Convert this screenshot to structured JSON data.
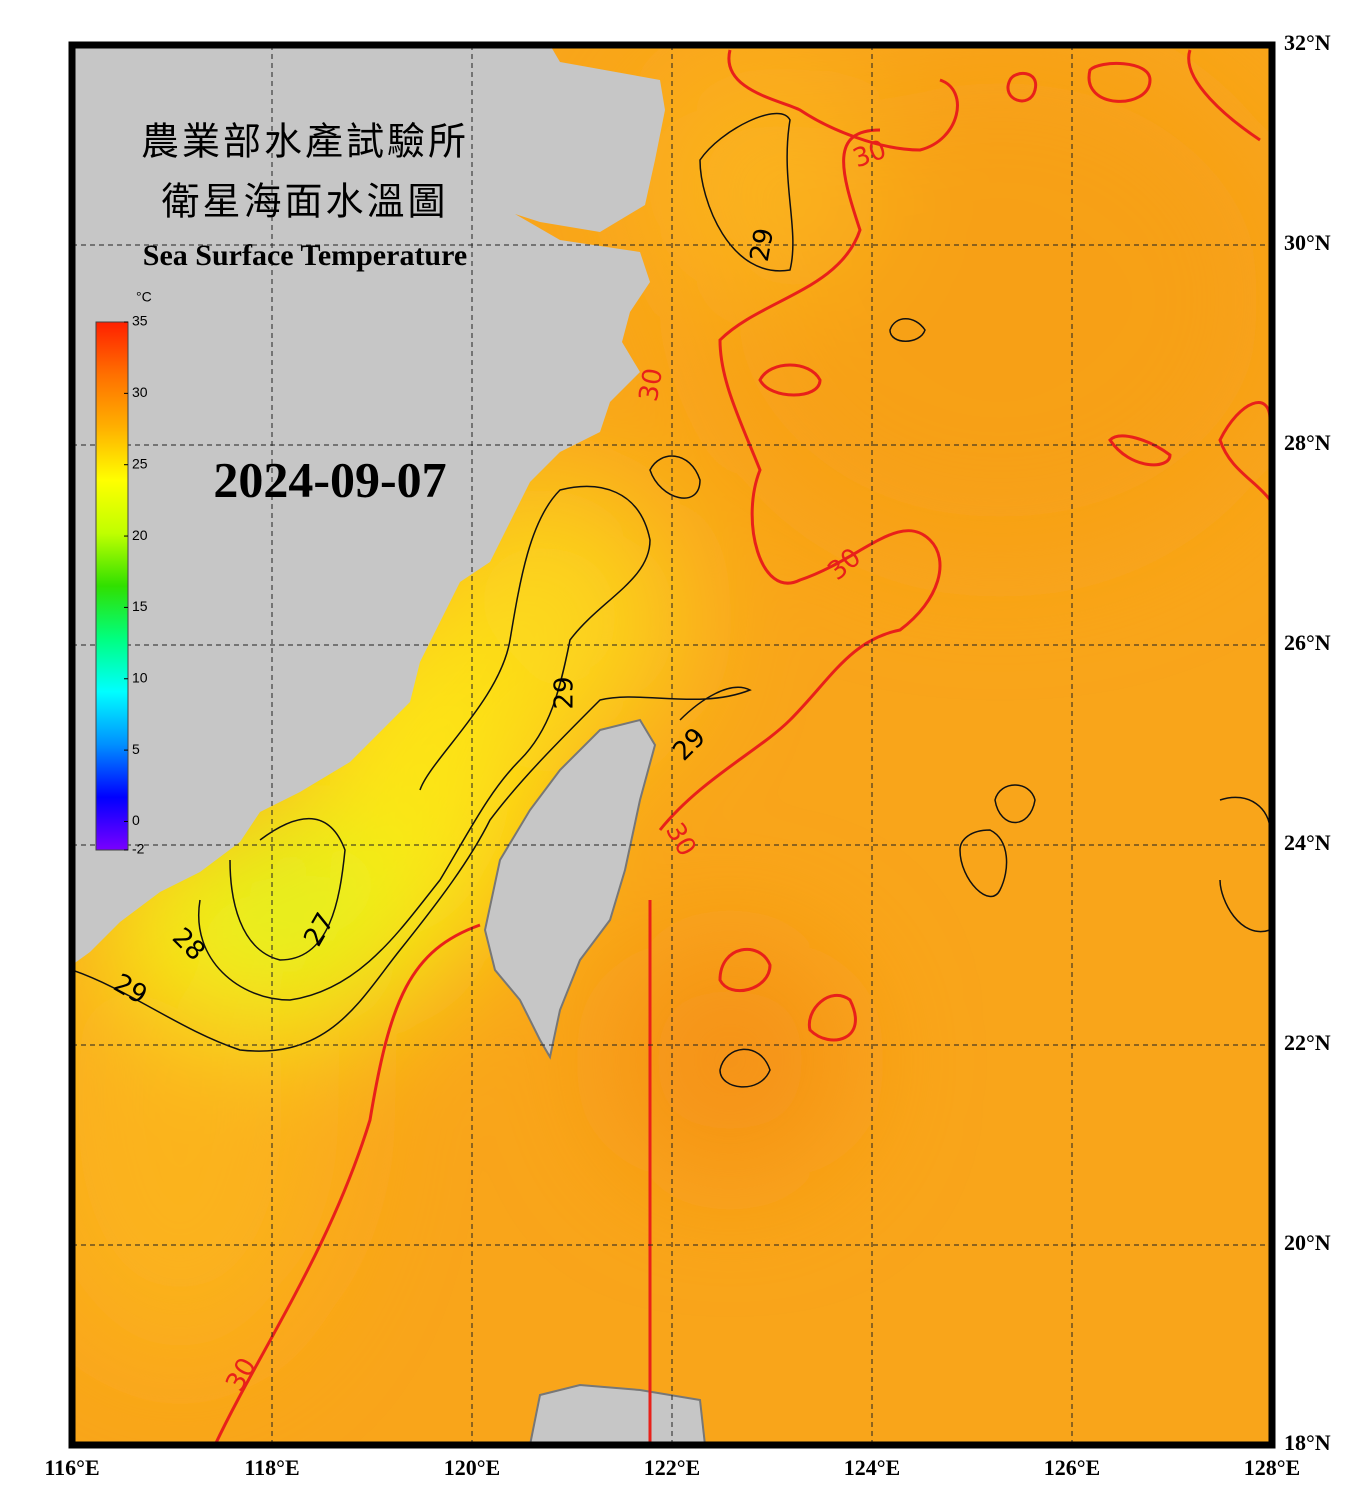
{
  "title_zh_1": "農業部水產試驗所",
  "title_zh_2": "衛星海面水溫圖",
  "title_en": "Sea Surface Temperature",
  "date": "2024-09-07",
  "lon_range": [
    116,
    128
  ],
  "lat_range": [
    18,
    32
  ],
  "lon_ticks": [
    {
      "value": 116,
      "label": "116°E"
    },
    {
      "value": 118,
      "label": "118°E"
    },
    {
      "value": 120,
      "label": "120°E"
    },
    {
      "value": 122,
      "label": "122°E"
    },
    {
      "value": 124,
      "label": "124°E"
    },
    {
      "value": 126,
      "label": "126°E"
    },
    {
      "value": 128,
      "label": "128°E"
    }
  ],
  "lat_ticks": [
    {
      "value": 18,
      "label": "18°N"
    },
    {
      "value": 20,
      "label": "20°N"
    },
    {
      "value": 22,
      "label": "22°N"
    },
    {
      "value": 24,
      "label": "24°N"
    },
    {
      "value": 26,
      "label": "26°N"
    },
    {
      "value": 28,
      "label": "28°N"
    },
    {
      "value": 30,
      "label": "30°N"
    },
    {
      "value": 32,
      "label": "32°N"
    }
  ],
  "colorbar": {
    "unit": "°C",
    "range": [
      -2,
      35
    ],
    "ticks": [
      35,
      30,
      25,
      20,
      15,
      10,
      5,
      0,
      -2
    ],
    "colors": [
      "#7a00ff",
      "#0000ff",
      "#0090ff",
      "#00ffff",
      "#00ff80",
      "#30e000",
      "#c0ff00",
      "#ffff00",
      "#ffb000",
      "#ff7000",
      "#ff2000"
    ]
  },
  "contour_labels": [
    "30",
    "30",
    "30",
    "30",
    "30",
    "29",
    "29",
    "29",
    "29",
    "28",
    "27"
  ]
}
